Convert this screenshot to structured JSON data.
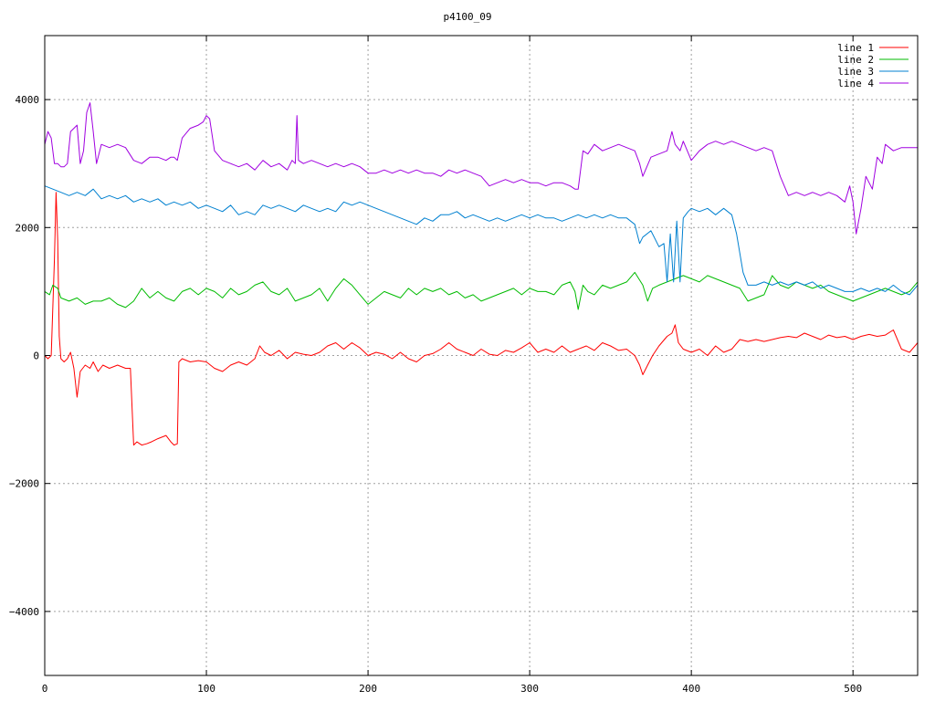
{
  "chart_data": {
    "type": "line",
    "title": "p4100_09",
    "xlabel": "",
    "ylabel": "",
    "xlim": [
      0,
      540
    ],
    "ylim": [
      -5000,
      5000
    ],
    "x_ticks": [
      0,
      100,
      200,
      300,
      400,
      500
    ],
    "y_ticks": [
      -4000,
      -2000,
      0,
      2000,
      4000
    ],
    "y_tick_labels": [
      "-4000",
      "-2000",
      "0",
      "2000",
      "4000"
    ],
    "grid": true,
    "legend_position": "top-right",
    "series": [
      {
        "name": "line 1",
        "color": "#ff0000",
        "x": [
          0,
          2,
          4,
          6,
          7,
          8,
          9,
          10,
          12,
          14,
          16,
          18,
          20,
          22,
          25,
          28,
          30,
          33,
          36,
          40,
          45,
          50,
          53,
          55,
          57,
          60,
          63,
          66,
          70,
          75,
          78,
          80,
          82,
          83,
          85,
          90,
          95,
          100,
          105,
          110,
          115,
          120,
          125,
          130,
          133,
          136,
          140,
          145,
          150,
          155,
          160,
          165,
          170,
          175,
          180,
          185,
          190,
          195,
          200,
          205,
          210,
          215,
          220,
          225,
          230,
          235,
          240,
          245,
          250,
          255,
          260,
          265,
          270,
          275,
          280,
          285,
          290,
          295,
          300,
          305,
          310,
          315,
          320,
          325,
          330,
          335,
          340,
          345,
          350,
          355,
          360,
          365,
          368,
          370,
          373,
          376,
          380,
          385,
          388,
          390,
          392,
          395,
          400,
          405,
          410,
          415,
          420,
          425,
          430,
          435,
          440,
          445,
          450,
          455,
          460,
          465,
          470,
          475,
          480,
          485,
          490,
          495,
          500,
          505,
          510,
          515,
          520,
          525,
          530,
          535,
          540
        ],
        "values": [
          0,
          -50,
          0,
          1500,
          2550,
          1800,
          300,
          -50,
          -100,
          -50,
          50,
          -200,
          -650,
          -250,
          -150,
          -200,
          -100,
          -250,
          -150,
          -200,
          -150,
          -200,
          -200,
          -1400,
          -1350,
          -1400,
          -1380,
          -1350,
          -1300,
          -1250,
          -1350,
          -1400,
          -1380,
          -100,
          -50,
          -100,
          -80,
          -100,
          -200,
          -250,
          -150,
          -100,
          -150,
          -50,
          150,
          50,
          0,
          80,
          -50,
          50,
          20,
          0,
          50,
          150,
          200,
          100,
          200,
          120,
          0,
          50,
          20,
          -50,
          50,
          -50,
          -100,
          0,
          30,
          100,
          200,
          100,
          50,
          0,
          100,
          20,
          0,
          80,
          50,
          120,
          200,
          50,
          100,
          50,
          150,
          50,
          100,
          150,
          80,
          200,
          150,
          80,
          100,
          0,
          -150,
          -300,
          -150,
          0,
          150,
          300,
          350,
          480,
          200,
          100,
          50,
          100,
          0,
          150,
          50,
          100,
          250,
          220,
          250,
          220,
          250,
          280,
          300,
          280,
          350,
          300,
          250,
          320,
          280,
          300,
          250,
          300,
          330,
          300,
          320,
          400,
          100,
          50,
          200
        ]
      },
      {
        "name": "line 2",
        "color": "#00bb00",
        "x": [
          0,
          3,
          5,
          8,
          10,
          15,
          20,
          25,
          30,
          35,
          40,
          45,
          50,
          55,
          60,
          65,
          70,
          75,
          80,
          85,
          90,
          95,
          100,
          105,
          110,
          115,
          120,
          125,
          130,
          135,
          140,
          145,
          150,
          155,
          160,
          165,
          170,
          175,
          180,
          185,
          190,
          195,
          200,
          205,
          210,
          215,
          220,
          225,
          230,
          235,
          240,
          245,
          250,
          255,
          260,
          265,
          270,
          275,
          280,
          285,
          290,
          295,
          300,
          305,
          310,
          315,
          320,
          325,
          328,
          330,
          333,
          336,
          340,
          345,
          350,
          355,
          360,
          365,
          370,
          373,
          376,
          380,
          385,
          390,
          395,
          400,
          405,
          410,
          415,
          420,
          425,
          430,
          435,
          440,
          445,
          450,
          455,
          460,
          465,
          470,
          475,
          480,
          485,
          490,
          495,
          500,
          505,
          510,
          515,
          520,
          525,
          530,
          535,
          540
        ],
        "values": [
          1000,
          950,
          1100,
          1050,
          900,
          850,
          900,
          800,
          850,
          850,
          900,
          800,
          750,
          850,
          1050,
          900,
          1000,
          900,
          850,
          1000,
          1050,
          950,
          1050,
          1000,
          900,
          1050,
          950,
          1000,
          1100,
          1150,
          1000,
          950,
          1050,
          850,
          900,
          950,
          1050,
          850,
          1050,
          1200,
          1100,
          950,
          800,
          900,
          1000,
          950,
          900,
          1050,
          950,
          1050,
          1000,
          1050,
          950,
          1000,
          900,
          950,
          850,
          900,
          950,
          1000,
          1050,
          950,
          1050,
          1000,
          1000,
          950,
          1100,
          1150,
          1000,
          720,
          1100,
          1000,
          950,
          1100,
          1050,
          1100,
          1150,
          1300,
          1100,
          850,
          1050,
          1100,
          1150,
          1200,
          1250,
          1200,
          1150,
          1250,
          1200,
          1150,
          1100,
          1050,
          850,
          900,
          950,
          1250,
          1100,
          1050,
          1150,
          1100,
          1050,
          1100,
          1000,
          950,
          900,
          850,
          900,
          950,
          1000,
          1050,
          1000,
          950,
          1000,
          1150
        ]
      },
      {
        "name": "line 3",
        "color": "#0080d0",
        "x": [
          0,
          5,
          10,
          15,
          20,
          25,
          30,
          35,
          40,
          45,
          50,
          55,
          60,
          65,
          70,
          75,
          80,
          85,
          90,
          95,
          100,
          105,
          110,
          115,
          120,
          125,
          130,
          135,
          140,
          145,
          150,
          155,
          160,
          165,
          170,
          175,
          180,
          185,
          190,
          195,
          200,
          205,
          210,
          215,
          220,
          225,
          230,
          235,
          240,
          245,
          250,
          255,
          260,
          265,
          270,
          275,
          280,
          285,
          290,
          295,
          300,
          305,
          310,
          315,
          320,
          325,
          330,
          335,
          340,
          345,
          350,
          355,
          360,
          365,
          368,
          370,
          375,
          380,
          383,
          385,
          387,
          389,
          391,
          393,
          395,
          398,
          400,
          405,
          410,
          415,
          420,
          425,
          428,
          432,
          435,
          440,
          445,
          450,
          455,
          460,
          465,
          470,
          475,
          480,
          485,
          490,
          495,
          500,
          505,
          510,
          515,
          520,
          525,
          530,
          535,
          540
        ],
        "values": [
          2650,
          2600,
          2550,
          2500,
          2550,
          2500,
          2600,
          2450,
          2500,
          2450,
          2500,
          2400,
          2450,
          2400,
          2450,
          2350,
          2400,
          2350,
          2400,
          2300,
          2350,
          2300,
          2250,
          2350,
          2200,
          2250,
          2200,
          2350,
          2300,
          2350,
          2300,
          2250,
          2350,
          2300,
          2250,
          2300,
          2250,
          2400,
          2350,
          2400,
          2350,
          2300,
          2250,
          2200,
          2150,
          2100,
          2050,
          2150,
          2100,
          2200,
          2200,
          2250,
          2150,
          2200,
          2150,
          2100,
          2150,
          2100,
          2150,
          2200,
          2150,
          2200,
          2150,
          2150,
          2100,
          2150,
          2200,
          2150,
          2200,
          2150,
          2200,
          2150,
          2150,
          2050,
          1750,
          1850,
          1950,
          1700,
          1750,
          1150,
          1900,
          1150,
          2100,
          1150,
          2150,
          2250,
          2300,
          2250,
          2300,
          2200,
          2300,
          2200,
          1900,
          1300,
          1100,
          1100,
          1150,
          1100,
          1150,
          1100,
          1150,
          1100,
          1150,
          1050,
          1100,
          1050,
          1000,
          1000,
          1050,
          1000,
          1050,
          1000,
          1100,
          1000,
          950,
          1100
        ]
      },
      {
        "name": "line 4",
        "color": "#a000e0",
        "x": [
          0,
          2,
          4,
          6,
          8,
          10,
          12,
          14,
          16,
          18,
          20,
          22,
          24,
          26,
          28,
          30,
          32,
          35,
          40,
          45,
          50,
          55,
          60,
          65,
          70,
          75,
          78,
          80,
          82,
          85,
          90,
          95,
          98,
          100,
          102,
          105,
          110,
          115,
          120,
          125,
          130,
          135,
          140,
          145,
          150,
          153,
          155,
          156,
          157,
          160,
          165,
          170,
          175,
          180,
          185,
          190,
          195,
          200,
          205,
          210,
          215,
          220,
          225,
          230,
          235,
          240,
          245,
          250,
          255,
          260,
          265,
          270,
          275,
          280,
          285,
          290,
          295,
          300,
          305,
          310,
          315,
          320,
          325,
          328,
          330,
          333,
          336,
          340,
          345,
          350,
          355,
          360,
          365,
          368,
          370,
          375,
          380,
          385,
          388,
          390,
          393,
          395,
          400,
          405,
          410,
          415,
          420,
          425,
          430,
          435,
          440,
          445,
          450,
          455,
          460,
          465,
          470,
          475,
          480,
          485,
          490,
          495,
          498,
          500,
          502,
          505,
          508,
          512,
          515,
          518,
          520,
          525,
          530,
          535,
          540
        ],
        "values": [
          3300,
          3500,
          3400,
          3000,
          3000,
          2950,
          2950,
          3000,
          3500,
          3550,
          3600,
          3000,
          3200,
          3800,
          3950,
          3500,
          3000,
          3300,
          3250,
          3300,
          3250,
          3050,
          3000,
          3100,
          3100,
          3050,
          3100,
          3100,
          3050,
          3400,
          3550,
          3600,
          3650,
          3750,
          3700,
          3200,
          3050,
          3000,
          2950,
          3000,
          2900,
          3050,
          2950,
          3000,
          2900,
          3050,
          3000,
          3750,
          3050,
          3000,
          3050,
          3000,
          2950,
          3000,
          2950,
          3000,
          2950,
          2850,
          2850,
          2900,
          2850,
          2900,
          2850,
          2900,
          2850,
          2850,
          2800,
          2900,
          2850,
          2900,
          2850,
          2800,
          2650,
          2700,
          2750,
          2700,
          2750,
          2700,
          2700,
          2650,
          2700,
          2700,
          2650,
          2600,
          2600,
          3200,
          3150,
          3300,
          3200,
          3250,
          3300,
          3250,
          3200,
          3000,
          2800,
          3100,
          3150,
          3200,
          3500,
          3300,
          3200,
          3350,
          3050,
          3200,
          3300,
          3350,
          3300,
          3350,
          3300,
          3250,
          3200,
          3250,
          3200,
          2800,
          2500,
          2550,
          2500,
          2550,
          2500,
          2550,
          2500,
          2400,
          2650,
          2400,
          1900,
          2300,
          2800,
          2600,
          3100,
          3000,
          3300,
          3200,
          3250,
          3250,
          3250
        ]
      }
    ]
  }
}
